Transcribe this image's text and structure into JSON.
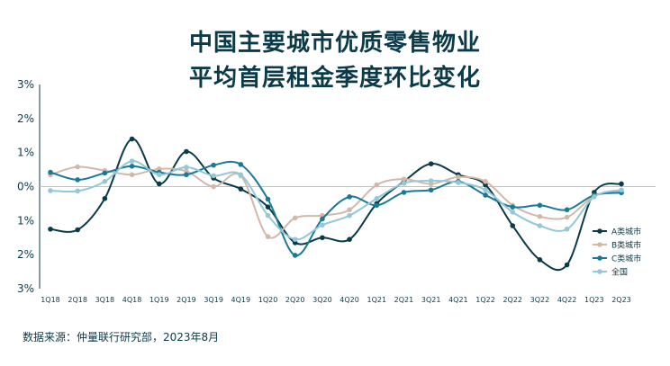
{
  "title_line1": "中国主要城市优质零售物业",
  "title_line2": "平均首层租金季度环比变化",
  "source": "数据来源：仲量联行研究部，2023年8月",
  "chart_data": {
    "type": "line",
    "title": "中国主要城市优质零售物业 平均首层租金季度环比变化",
    "categories": [
      "1Q18",
      "2Q18",
      "3Q18",
      "4Q18",
      "1Q19",
      "2Q19",
      "3Q19",
      "4Q19",
      "1Q20",
      "2Q20",
      "3Q20",
      "4Q20",
      "1Q21",
      "2Q21",
      "3Q21",
      "4Q21",
      "1Q22",
      "2Q22",
      "3Q22",
      "4Q22",
      "1Q23",
      "2Q23"
    ],
    "y_tick_labels": [
      "3%",
      "2%",
      "1%",
      "0%",
      "1%",
      "2%",
      "3%"
    ],
    "ylim": [
      -3,
      3
    ],
    "grid": false,
    "legend_position": "right",
    "series": [
      {
        "name": "A类城市",
        "color": "#0b3a48",
        "values": [
          -1.25,
          -1.27,
          -0.35,
          1.4,
          0.08,
          1.03,
          0.25,
          -0.07,
          -0.6,
          -1.65,
          -1.5,
          -1.55,
          -0.5,
          0.15,
          0.67,
          0.35,
          0.05,
          -1.15,
          -2.15,
          -2.3,
          -0.17,
          0.08
        ]
      },
      {
        "name": "B类城市",
        "color": "#d2b8a9",
        "values": [
          0.35,
          0.58,
          0.47,
          0.35,
          0.52,
          0.45,
          0.0,
          0.32,
          -1.47,
          -0.92,
          -0.85,
          -0.68,
          0.05,
          0.22,
          0.08,
          0.28,
          0.15,
          -0.55,
          -0.88,
          -0.9,
          -0.28,
          -0.12
        ]
      },
      {
        "name": "C类城市",
        "color": "#1a7a95",
        "values": [
          0.42,
          0.2,
          0.4,
          0.6,
          0.42,
          0.35,
          0.63,
          0.65,
          -0.37,
          -2.02,
          -0.95,
          -0.3,
          -0.55,
          -0.17,
          -0.1,
          0.15,
          -0.25,
          -0.6,
          -0.55,
          -0.68,
          -0.25,
          -0.18
        ]
      },
      {
        "name": "全国",
        "color": "#92c8d7",
        "values": [
          -0.12,
          -0.13,
          0.15,
          0.75,
          0.35,
          0.57,
          0.32,
          0.35,
          -0.85,
          -1.55,
          -1.13,
          -0.85,
          -0.35,
          0.1,
          0.17,
          0.12,
          -0.1,
          -0.75,
          -1.15,
          -1.25,
          -0.3,
          -0.1
        ]
      }
    ]
  }
}
